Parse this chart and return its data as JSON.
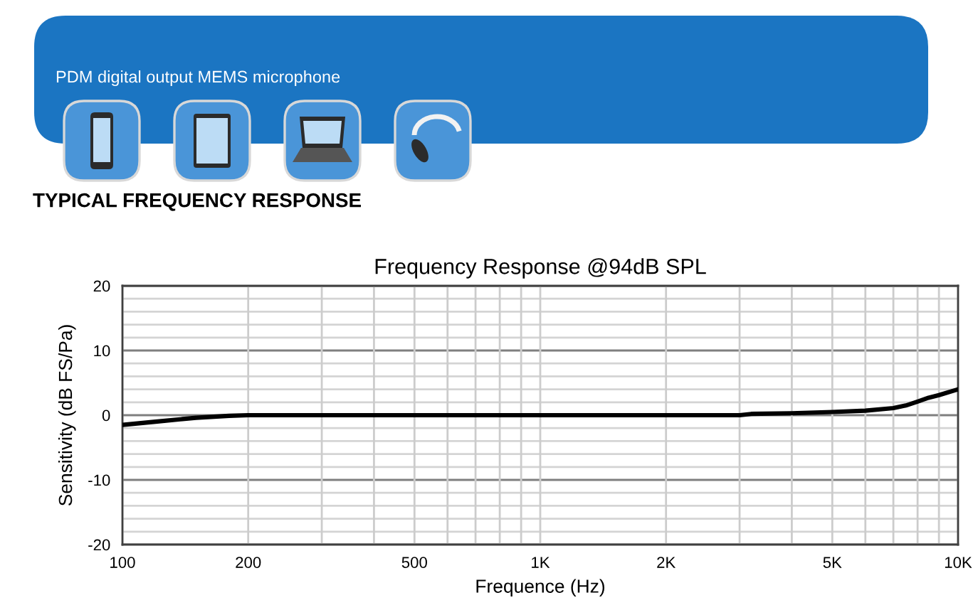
{
  "chart_data": {
    "type": "line",
    "title": "Frequency Response @94dB SPL",
    "xlabel": "Frequence (Hz)",
    "ylabel": "Sensitivity (dB FS/Pa)",
    "annotations": [
      "PDM digital output MEMS microphone",
      "TYPICAL FREQUENCY RESPONSE"
    ],
    "series": [
      {
        "color": "#000000",
        "x": [
          100,
          120,
          150,
          180,
          200,
          300,
          500,
          1000,
          2000,
          3000,
          3200,
          4000,
          5000,
          6000,
          7000,
          7500,
          8000,
          8500,
          9000,
          10000
        ],
        "values": [
          -1.5,
          -1.0,
          -0.4,
          -0.1,
          0,
          0,
          0,
          0,
          0,
          0,
          0.2,
          0.3,
          0.5,
          0.7,
          1.1,
          1.5,
          2.1,
          2.7,
          3.1,
          4.0
        ]
      }
    ],
    "log": "x",
    "xlim": [
      100,
      10000
    ],
    "xticks": [
      100,
      200,
      {
        "value": 300,
        "label": null
      },
      {
        "value": 400,
        "label": null
      },
      500,
      {
        "value": 600,
        "label": null
      },
      {
        "value": 700,
        "label": null
      },
      {
        "value": 800,
        "label": null
      },
      {
        "value": 900,
        "label": null
      },
      {
        "value": 1000,
        "label": "1K"
      },
      {
        "value": 2000,
        "label": "2K"
      },
      {
        "value": 3000,
        "label": null
      },
      {
        "value": 4000,
        "label": null
      },
      {
        "value": 5000,
        "label": "5K"
      },
      {
        "value": 6000,
        "label": null
      },
      {
        "value": 7000,
        "label": null
      },
      {
        "value": 8000,
        "label": null
      },
      {
        "value": 9000,
        "label": null
      },
      {
        "value": 10000,
        "label": "10K"
      }
    ],
    "ylim": [
      -20,
      20
    ],
    "yticks": [
      -20,
      {
        "value": -18,
        "label": null
      },
      {
        "value": -16,
        "label": null
      },
      {
        "value": -14,
        "label": null
      },
      {
        "value": -12,
        "label": null
      },
      -10,
      {
        "value": -8,
        "label": null
      },
      {
        "value": -6,
        "label": null
      },
      {
        "value": -4,
        "label": null
      },
      {
        "value": -2,
        "label": null
      },
      0,
      {
        "value": 2,
        "label": null
      },
      {
        "value": 4,
        "label": null
      },
      {
        "value": 6,
        "label": null
      },
      {
        "value": 8,
        "label": null
      },
      10,
      {
        "value": 12,
        "label": null
      },
      {
        "value": 14,
        "label": null
      },
      {
        "value": 16,
        "label": null
      },
      {
        "value": 18,
        "label": null
      },
      20
    ],
    "grid": true,
    "legend": false,
    "marker": "none",
    "line_style": "solid"
  }
}
